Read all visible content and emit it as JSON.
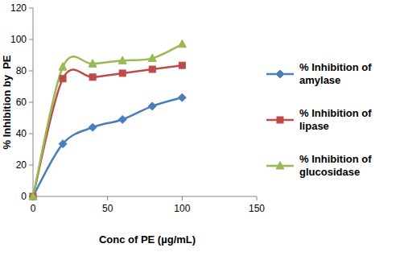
{
  "chart_data": {
    "type": "line",
    "x_label": "Conc of PE (µg/mL)",
    "y_label": "% Inhibition by  PE",
    "x": [
      0,
      20,
      40,
      60,
      80,
      100
    ],
    "series": [
      {
        "name": "% Inhibition of amylase",
        "color": "#4a7ebb",
        "marker": "diamond",
        "values": [
          0,
          33.5,
          44,
          49,
          57.5,
          63
        ]
      },
      {
        "name": "% Inhibition of lipase",
        "color": "#be4b48",
        "marker": "square",
        "values": [
          0,
          75,
          76,
          78.5,
          81,
          83.5
        ]
      },
      {
        "name": "% Inhibition of glucosidase",
        "color": "#98b954",
        "marker": "triangle",
        "values": [
          0,
          82.5,
          84.5,
          86.5,
          88,
          97
        ]
      }
    ],
    "xlim": [
      0,
      150
    ],
    "xticks": [
      0,
      50,
      100,
      150
    ],
    "ylim": [
      0,
      120
    ],
    "yticks": [
      0,
      20,
      40,
      60,
      80,
      100,
      120
    ],
    "grid": false,
    "legend": "right"
  }
}
